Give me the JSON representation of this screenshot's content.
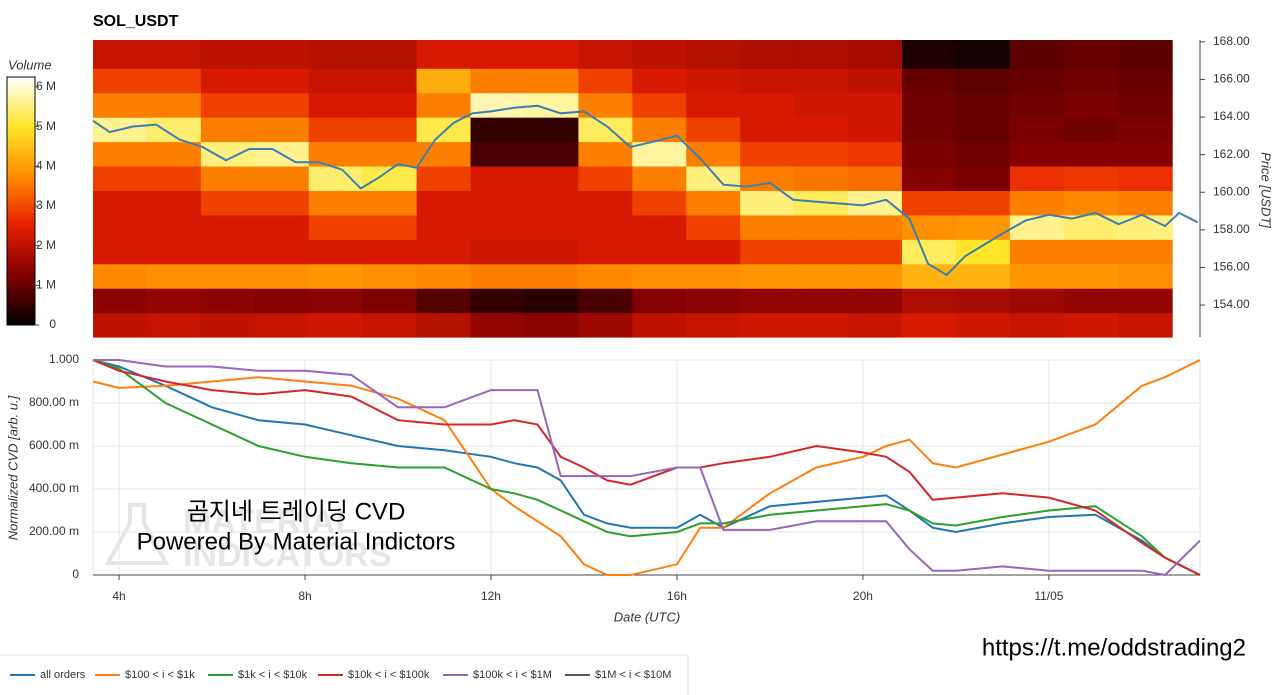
{
  "chart_data": [
    {
      "type": "heatmap",
      "title": "SOL_USDT",
      "y_label": "Price [USDT]",
      "xlim": [
        3.44,
        27.25
      ],
      "ylim": [
        152.3,
        168.1
      ],
      "yticks": [
        {
          "value": 154,
          "label": "154.00"
        },
        {
          "value": 156,
          "label": "156.00"
        },
        {
          "value": 158,
          "label": "158.00"
        },
        {
          "value": 160,
          "label": "160.00"
        },
        {
          "value": 162,
          "label": "162.00"
        },
        {
          "value": 164,
          "label": "164.00"
        },
        {
          "value": 166,
          "label": "166.00"
        },
        {
          "value": 168,
          "label": "168.00"
        }
      ],
      "x_bins": [
        3.44,
        4.6,
        5.76,
        6.92,
        8.08,
        9.24,
        10.4,
        11.56,
        12.72,
        13.88,
        15.04,
        16.2,
        17.36,
        18.52,
        19.68,
        20.84,
        22.0,
        23.16,
        24.32,
        25.48,
        26.65
      ],
      "y_bins": [
        152.3,
        153.6,
        154.9,
        156.2,
        157.5,
        158.8,
        160.1,
        161.4,
        162.7,
        164.0,
        165.3,
        166.6,
        168.1
      ],
      "z": [
        [
          2000000,
          2100000,
          2000000,
          2100000,
          2200000,
          2100000,
          1900000,
          1500000,
          1400000,
          1600000,
          2000000,
          2100000,
          2200000,
          2200000,
          2100000,
          2300000,
          2200000,
          2100000,
          2200000,
          2100000
        ],
        [
          1400000,
          1500000,
          1400000,
          1300000,
          1400000,
          1200000,
          800000,
          500000,
          400000,
          700000,
          1300000,
          1400000,
          1500000,
          1500000,
          1500000,
          1800000,
          1700000,
          1600000,
          1500000,
          1500000
        ],
        [
          3700000,
          3800000,
          3800000,
          3800000,
          3900000,
          3800000,
          3700000,
          3600000,
          3600000,
          3700000,
          3800000,
          3800000,
          3900000,
          3900000,
          3900000,
          4300000,
          4300000,
          3900000,
          3900000,
          3800000
        ],
        [
          2300000,
          2300000,
          2300000,
          2300000,
          2300000,
          2300000,
          2300000,
          2200000,
          2200000,
          2300000,
          2300000,
          2300000,
          2900000,
          2900000,
          2900000,
          5300000,
          5000000,
          3600000,
          3600000,
          3600000
        ],
        [
          2300000,
          2300000,
          2300000,
          2300000,
          2900000,
          2900000,
          2300000,
          2300000,
          2300000,
          2300000,
          2300000,
          2900000,
          3600000,
          3600000,
          3600000,
          3800000,
          3900000,
          5600000,
          5400000,
          5500000
        ],
        [
          2300000,
          2300000,
          2900000,
          2900000,
          3600000,
          3600000,
          2300000,
          2300000,
          2300000,
          2300000,
          2900000,
          3600000,
          5500000,
          5300000,
          5600000,
          2900000,
          2900000,
          3600000,
          3700000,
          3600000
        ],
        [
          2900000,
          2900000,
          3600000,
          3600000,
          5400000,
          5200000,
          2900000,
          2300000,
          2300000,
          2900000,
          3600000,
          5500000,
          3600000,
          3500000,
          3400000,
          1300000,
          1200000,
          2700000,
          2800000,
          2700000
        ],
        [
          3600000,
          3600000,
          5500000,
          5600000,
          3600000,
          3600000,
          3600000,
          700000,
          700000,
          3600000,
          5700000,
          3600000,
          2900000,
          2900000,
          2800000,
          1200000,
          1100000,
          1300000,
          1300000,
          1300000
        ],
        [
          5600000,
          5400000,
          3600000,
          3600000,
          2900000,
          2900000,
          5200000,
          500000,
          500000,
          5300000,
          3600000,
          2900000,
          2300000,
          2300000,
          2200000,
          1100000,
          1000000,
          1200000,
          1100000,
          1200000
        ],
        [
          3600000,
          3600000,
          2900000,
          2900000,
          2300000,
          2300000,
          3600000,
          5800000,
          5700000,
          3600000,
          2900000,
          2300000,
          2300000,
          2200000,
          2200000,
          1100000,
          1000000,
          1100000,
          1200000,
          1100000
        ],
        [
          2900000,
          2900000,
          2300000,
          2300000,
          2100000,
          2100000,
          4200000,
          3600000,
          3600000,
          2900000,
          2300000,
          2200000,
          2100000,
          2100000,
          2000000,
          1000000,
          900000,
          1000000,
          1100000,
          1000000
        ],
        [
          2100000,
          2100000,
          2000000,
          2000000,
          1900000,
          1900000,
          2300000,
          2300000,
          2300000,
          2100000,
          2000000,
          1900000,
          1800000,
          1800000,
          1700000,
          300000,
          200000,
          900000,
          1000000,
          900000
        ]
      ],
      "colorbar": {
        "title": "Volume",
        "zlim": [
          0,
          6250000
        ],
        "ticks": [
          0,
          {
            "value": 1000000,
            "label": "1 M"
          },
          {
            "value": 2000000,
            "label": "2 M"
          },
          {
            "value": 3000000,
            "label": "3 M"
          },
          {
            "value": 4000000,
            "label": "4 M"
          },
          {
            "value": 5000000,
            "label": "5 M"
          },
          {
            "value": 6000000,
            "label": "6 M"
          }
        ],
        "colorscale": [
          "#000000",
          "#800000",
          "#e61e00",
          "#ff8c00",
          "#ffe628",
          "#ffffff"
        ]
      },
      "series": [
        {
          "color": "#3a7fb5",
          "x": [
            3.44,
            3.8,
            4.3,
            4.8,
            5.3,
            5.8,
            6.3,
            6.8,
            7.3,
            7.8,
            8.3,
            8.8,
            9.2,
            9.6,
            10,
            10.4,
            10.8,
            11.2,
            11.6,
            12,
            12.5,
            13,
            13.5,
            14,
            14.5,
            15,
            15.5,
            16,
            16.5,
            17,
            17.5,
            18,
            18.5,
            19,
            19.5,
            20,
            20.5,
            21,
            21.4,
            21.8,
            22.2,
            22.6,
            23,
            23.5,
            24,
            24.5,
            25,
            25.5,
            26,
            26.5,
            26.8,
            27.2
          ],
          "values": [
            163.8,
            163.2,
            163.5,
            163.6,
            162.8,
            162.4,
            161.7,
            162.3,
            162.3,
            161.6,
            161.6,
            161.2,
            160.2,
            160.8,
            161.5,
            161.3,
            162.8,
            163.7,
            164.2,
            164.3,
            164.5,
            164.6,
            164.2,
            164.3,
            163.5,
            162.4,
            162.7,
            163.0,
            161.8,
            160.4,
            160.3,
            160.5,
            159.6,
            159.5,
            159.4,
            159.3,
            159.6,
            158.6,
            156.2,
            155.6,
            156.6,
            157.2,
            157.8,
            158.5,
            158.8,
            158.6,
            158.9,
            158.3,
            158.8,
            158.2,
            158.9,
            158.4
          ]
        }
      ]
    },
    {
      "type": "line",
      "x_label": "Date (UTC)",
      "y_label": "Normalized CVD [arb. u.]",
      "xlim": [
        3.44,
        27.25
      ],
      "ylim": [
        0,
        1
      ],
      "xticks": [
        {
          "value": 4,
          "label": "4h"
        },
        {
          "value": 8,
          "label": "8h"
        },
        {
          "value": 12,
          "label": "12h"
        },
        {
          "value": 16,
          "label": "16h"
        },
        {
          "value": 20,
          "label": "20h"
        },
        {
          "value": 24,
          "label": "11/05"
        }
      ],
      "yticks": [
        0,
        {
          "value": 0.2,
          "label": "200.00 m"
        },
        {
          "value": 0.4,
          "label": "400.00 m"
        },
        {
          "value": 0.6,
          "label": "600.00 m"
        },
        {
          "value": 0.8,
          "label": "800.00 m"
        },
        {
          "value": 1,
          "label": "1.000"
        }
      ],
      "grid": true,
      "x": [
        3.44,
        4,
        5,
        6,
        7,
        8,
        9,
        10,
        11,
        12,
        12.5,
        13,
        13.5,
        14,
        14.5,
        15,
        16,
        16.5,
        17,
        18,
        19,
        20,
        20.5,
        21,
        21.5,
        22,
        23,
        24,
        25,
        26,
        26.5,
        27.25
      ],
      "series": [
        {
          "name": "all orders",
          "color": "#1f77b4",
          "values": [
            1.0,
            0.97,
            0.88,
            0.78,
            0.72,
            0.7,
            0.65,
            0.6,
            0.58,
            0.55,
            0.52,
            0.5,
            0.44,
            0.28,
            0.24,
            0.22,
            0.22,
            0.28,
            0.22,
            0.32,
            0.34,
            0.36,
            0.37,
            0.3,
            0.22,
            0.2,
            0.24,
            0.27,
            0.28,
            0.16,
            0.08,
            0.0
          ]
        },
        {
          "name": "$100 < i < $1k",
          "color": "#ff7f0e",
          "values": [
            0.9,
            0.87,
            0.88,
            0.9,
            0.92,
            0.9,
            0.88,
            0.82,
            0.72,
            0.4,
            0.32,
            0.25,
            0.18,
            0.05,
            0.0,
            0.0,
            0.05,
            0.22,
            0.22,
            0.38,
            0.5,
            0.55,
            0.6,
            0.63,
            0.52,
            0.5,
            0.56,
            0.62,
            0.7,
            0.88,
            0.92,
            1.0
          ]
        },
        {
          "name": "$1k < i < $10k",
          "color": "#2ca02c",
          "values": [
            1.0,
            0.96,
            0.8,
            0.7,
            0.6,
            0.55,
            0.52,
            0.5,
            0.5,
            0.4,
            0.38,
            0.35,
            0.3,
            0.25,
            0.2,
            0.18,
            0.2,
            0.24,
            0.24,
            0.28,
            0.3,
            0.32,
            0.33,
            0.3,
            0.24,
            0.23,
            0.27,
            0.3,
            0.32,
            0.18,
            0.08,
            0.0
          ]
        },
        {
          "name": "$10k < i < $100k",
          "color": "#d62728",
          "values": [
            1.0,
            0.95,
            0.9,
            0.86,
            0.84,
            0.86,
            0.83,
            0.72,
            0.7,
            0.7,
            0.72,
            0.7,
            0.55,
            0.5,
            0.44,
            0.42,
            0.5,
            0.5,
            0.52,
            0.55,
            0.6,
            0.57,
            0.55,
            0.48,
            0.35,
            0.36,
            0.38,
            0.36,
            0.3,
            0.15,
            0.08,
            0.0
          ]
        },
        {
          "name": "$100k < i < $1M",
          "color": "#9467bd",
          "values": [
            1.0,
            1.0,
            0.97,
            0.97,
            0.95,
            0.95,
            0.93,
            0.78,
            0.78,
            0.86,
            0.86,
            0.86,
            0.46,
            0.46,
            0.46,
            0.46,
            0.5,
            0.5,
            0.21,
            0.21,
            0.25,
            0.25,
            0.25,
            0.12,
            0.02,
            0.02,
            0.04,
            0.02,
            0.02,
            0.02,
            0.0,
            0.16
          ]
        },
        {
          "name": "$1M < i < $10M",
          "color": "#595959",
          "values": [
            null,
            null,
            null,
            null,
            null,
            null,
            null,
            null,
            null,
            null,
            null,
            null,
            null,
            null,
            null,
            null,
            null,
            null,
            null,
            null,
            null,
            null,
            null,
            null,
            null,
            null,
            null,
            null,
            null,
            null,
            null,
            null
          ]
        }
      ]
    }
  ],
  "overlay": {
    "title": "곰지네 트레이딩 CVD",
    "subtitle": "Powered By Material Indictors"
  },
  "watermark": [
    "MATERIAL",
    "INDICATORS"
  ],
  "url": "https://t.me/oddstrading2"
}
